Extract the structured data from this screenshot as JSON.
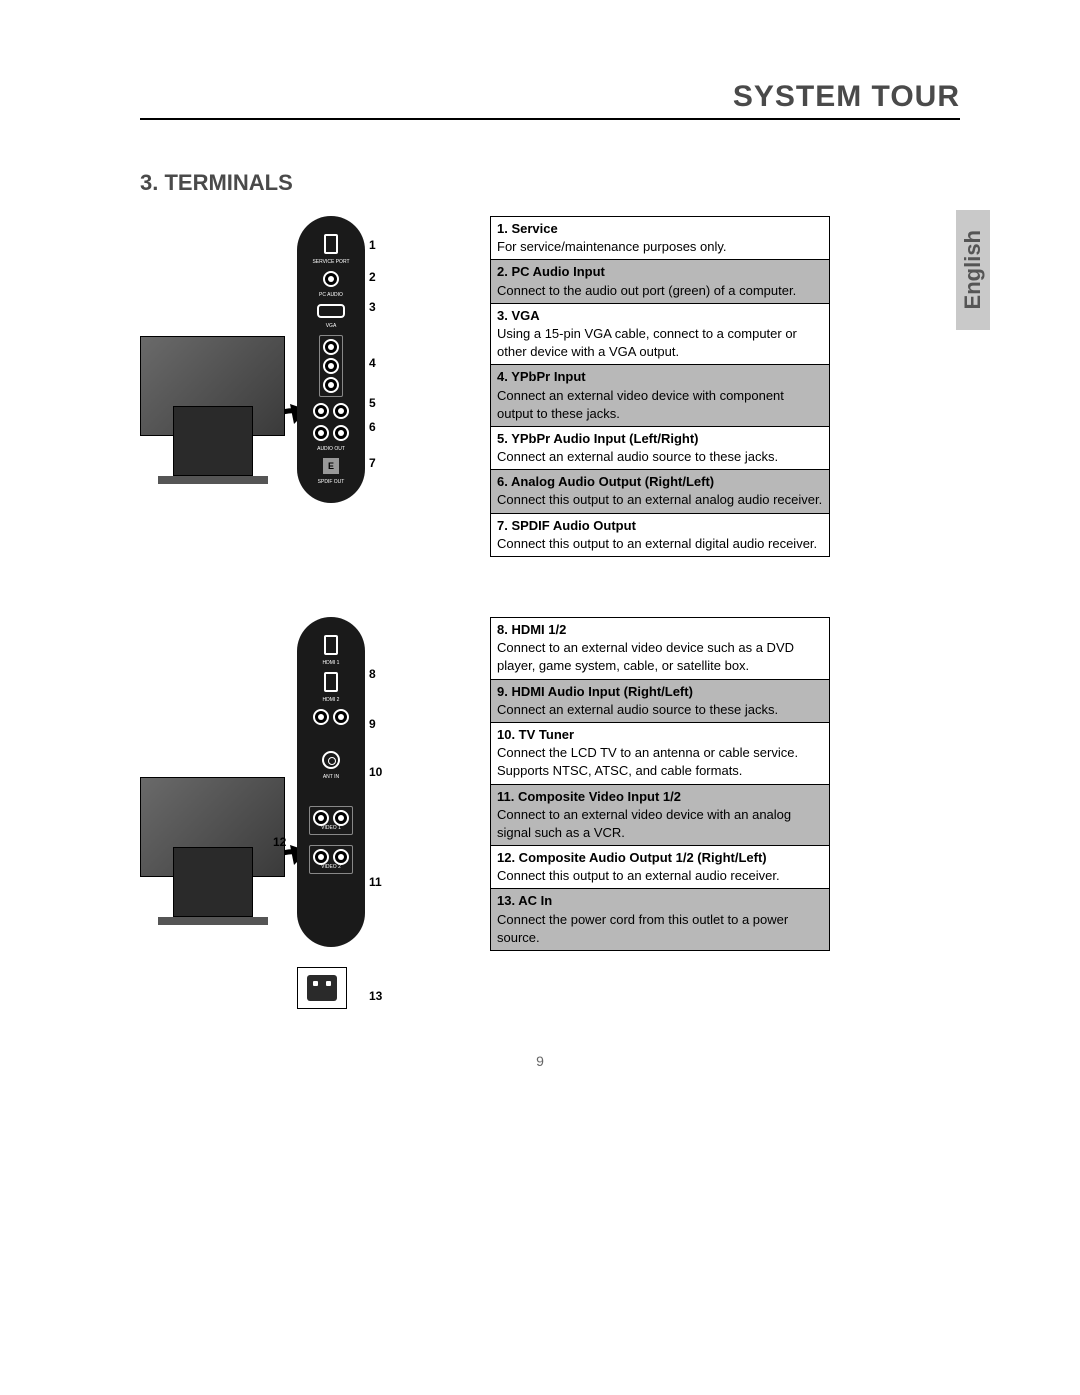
{
  "header": {
    "page_title": "SYSTEM TOUR",
    "section_title": "3. TERMINALS",
    "language_tab": "English",
    "page_number": "9"
  },
  "panel1": {
    "callouts": [
      "1",
      "2",
      "3",
      "4",
      "5",
      "6",
      "7"
    ],
    "port_labels": {
      "service": "SERVICE PORT",
      "pc_audio": "PC AUDIO",
      "vga": "VGA",
      "audio_out": "AUDIO OUT",
      "spdif": "SPDIF OUT"
    }
  },
  "panel2": {
    "callouts": [
      "8",
      "9",
      "10",
      "11",
      "12",
      "13"
    ],
    "port_labels": {
      "hdmi1": "HDMI 1",
      "hdmi2": "HDMI 2",
      "antin": "ANT IN",
      "video1": "VIDEO 1",
      "video2": "VIDEO 2"
    }
  },
  "table1": [
    {
      "shaded": false,
      "title": "1. Service",
      "desc": "For service/maintenance purposes only."
    },
    {
      "shaded": true,
      "title": "2. PC Audio Input",
      "desc": "Connect to the audio out port (green) of a computer."
    },
    {
      "shaded": false,
      "title": "3. VGA",
      "desc": "Using a 15-pin VGA cable, connect to a computer or other device with a VGA output."
    },
    {
      "shaded": true,
      "title": "4. YPbPr Input",
      "desc": "Connect an external video device with component output to these jacks."
    },
    {
      "shaded": false,
      "title": "5. YPbPr Audio Input (Left/Right)",
      "desc": "Connect an external audio source to these jacks."
    },
    {
      "shaded": true,
      "title": "6. Analog Audio Output (Right/Left)",
      "desc": "Connect this output to an external analog audio receiver."
    },
    {
      "shaded": false,
      "title": "7. SPDIF Audio Output",
      "desc": "Connect this output to an external digital audio receiver."
    }
  ],
  "table2": [
    {
      "shaded": false,
      "title": "8. HDMI 1/2",
      "desc": "Connect to an external video device such as a DVD player, game system, cable, or satellite box."
    },
    {
      "shaded": true,
      "title": "9. HDMI Audio Input (Right/Left)",
      "desc": "Connect an external audio source to these jacks."
    },
    {
      "shaded": false,
      "title": "10. TV Tuner",
      "desc": "Connect the LCD TV to an antenna or cable service. Supports NTSC, ATSC, and cable formats."
    },
    {
      "shaded": true,
      "title": "11. Composite Video Input 1/2",
      "desc": "Connect to an external video device with an analog signal such as a VCR."
    },
    {
      "shaded": false,
      "title": "12. Composite Audio Output 1/2 (Right/Left)",
      "desc": "Connect this output to an external audio receiver."
    },
    {
      "shaded": true,
      "title": "13. AC In",
      "desc": "Connect the power cord from this outlet to a power source."
    }
  ],
  "styling": {
    "shaded_bg": "#b8b8b8",
    "text_color": "#000000",
    "title_color": "#4a4a4a",
    "panel_bg": "#1a1a1a",
    "lang_tab_bg": "#c9c9c9",
    "page_bg": "#ffffff",
    "font_family": "Arial",
    "title_fontsize_pt": 22,
    "body_fontsize_pt": 10
  }
}
